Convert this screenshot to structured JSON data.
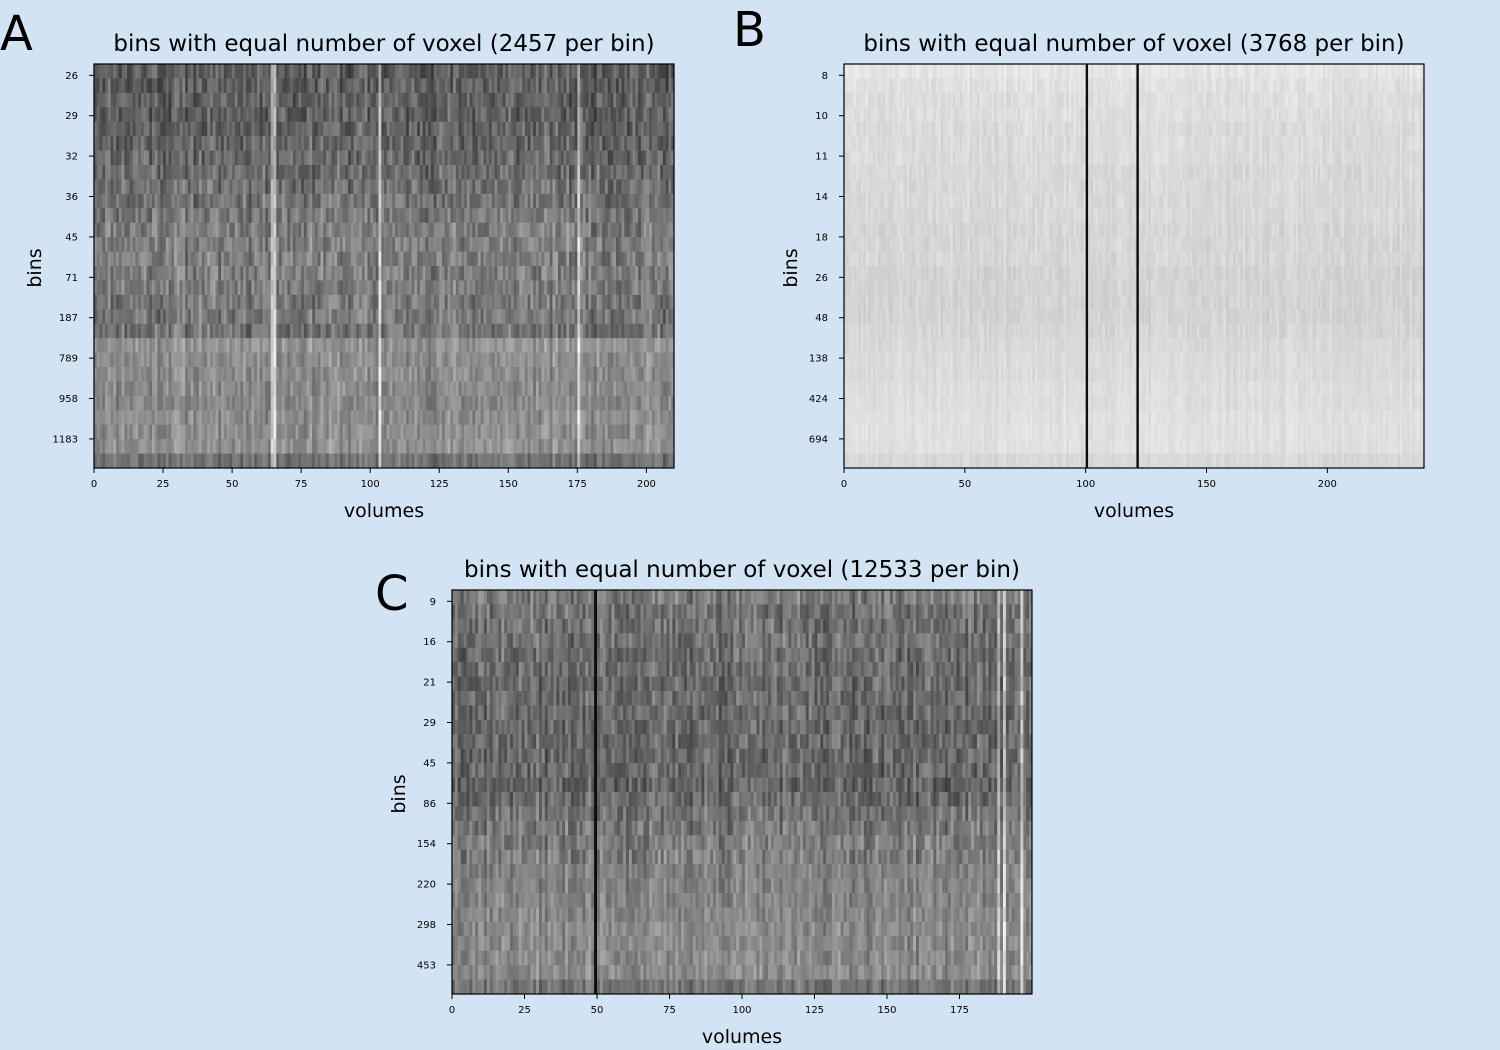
{
  "chart_data": [
    {
      "panel": "A",
      "type": "heatmap",
      "title": "bins with equal number of voxel (2457 per bin)",
      "xlabel": "volumes",
      "ylabel": "bins",
      "colormap": "grayscale",
      "x_ticks": [
        0,
        25,
        50,
        75,
        100,
        125,
        150,
        175,
        200
      ],
      "xlim": [
        0,
        210
      ],
      "y_tick_labels": [
        "26",
        "29",
        "32",
        "36",
        "45",
        "71",
        "187",
        "789",
        "958",
        "1183"
      ],
      "n_rows": 28,
      "row_base": [
        0.36,
        0.37,
        0.38,
        0.38,
        0.39,
        0.4,
        0.41,
        0.42,
        0.44,
        0.45,
        0.47,
        0.49,
        0.5,
        0.5,
        0.5,
        0.49,
        0.48,
        0.47,
        0.46,
        0.58,
        0.56,
        0.55,
        0.55,
        0.54,
        0.55,
        0.56,
        0.57,
        0.45
      ],
      "bright_columns": [
        64,
        65,
        103,
        175
      ],
      "dark_columns": [],
      "grid": false
    },
    {
      "panel": "B",
      "type": "heatmap",
      "title": "bins with equal number of voxel (3768 per bin)",
      "xlabel": "volumes",
      "ylabel": "bins",
      "colormap": "grayscale",
      "x_ticks": [
        0,
        50,
        100,
        150,
        200
      ],
      "xlim": [
        0,
        240
      ],
      "y_tick_labels": [
        "8",
        "10",
        "11",
        "14",
        "18",
        "26",
        "48",
        "138",
        "424",
        "694"
      ],
      "n_rows": 28,
      "row_base": [
        0.9,
        0.88,
        0.87,
        0.87,
        0.86,
        0.86,
        0.86,
        0.85,
        0.85,
        0.85,
        0.85,
        0.84,
        0.84,
        0.84,
        0.83,
        0.83,
        0.83,
        0.83,
        0.84,
        0.85,
        0.86,
        0.86,
        0.87,
        0.87,
        0.88,
        0.88,
        0.88,
        0.85
      ],
      "bright_columns": [],
      "dark_columns": [
        100,
        121
      ],
      "grid": false
    },
    {
      "panel": "C",
      "type": "heatmap",
      "title": "bins with equal number of voxel (12533 per bin)",
      "xlabel": "volumes",
      "ylabel": "bins",
      "colormap": "grayscale",
      "x_ticks": [
        0,
        25,
        50,
        75,
        100,
        125,
        150,
        175
      ],
      "xlim": [
        0,
        200
      ],
      "y_tick_labels": [
        "9",
        "16",
        "21",
        "29",
        "45",
        "86",
        "154",
        "220",
        "298",
        "453"
      ],
      "n_rows": 28,
      "row_base": [
        0.48,
        0.45,
        0.44,
        0.44,
        0.43,
        0.43,
        0.42,
        0.42,
        0.42,
        0.41,
        0.41,
        0.41,
        0.41,
        0.4,
        0.42,
        0.45,
        0.47,
        0.49,
        0.5,
        0.51,
        0.51,
        0.52,
        0.53,
        0.54,
        0.54,
        0.54,
        0.55,
        0.46
      ],
      "bright_columns": [
        188,
        190,
        196
      ],
      "dark_columns": [
        49
      ],
      "grid": false
    }
  ]
}
